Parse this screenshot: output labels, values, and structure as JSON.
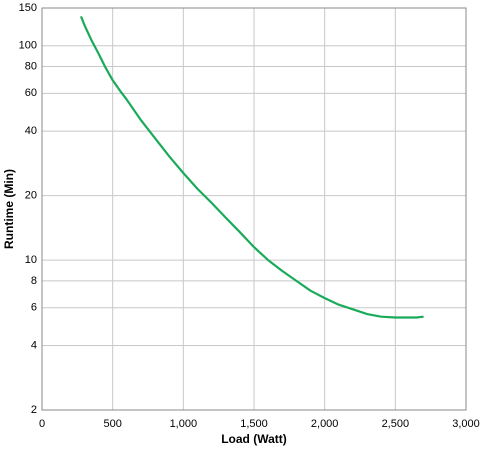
{
  "chart_data": {
    "type": "line",
    "xlabel": "Load (Watt)",
    "ylabel": "Runtime (Min)",
    "x": [
      276,
      300,
      350,
      400,
      450,
      500,
      550,
      600,
      700,
      800,
      900,
      1000,
      1100,
      1200,
      1300,
      1400,
      1500,
      1600,
      1700,
      1800,
      1900,
      2000,
      2100,
      2200,
      2300,
      2400,
      2500,
      2600,
      2650,
      2700
    ],
    "values": [
      137,
      125,
      106,
      92,
      79,
      69,
      62,
      56,
      45,
      37,
      30.5,
      25.5,
      21.5,
      18.5,
      15.8,
      13.5,
      11.5,
      10,
      8.9,
      8,
      7.2,
      6.65,
      6.2,
      5.9,
      5.6,
      5.45,
      5.4,
      5.4,
      5.4,
      5.45
    ],
    "color": "#1aab5a",
    "xlim": [
      0,
      3000
    ],
    "xticks": [
      0,
      500,
      {
        "value": 1000,
        "label": "1,000"
      },
      {
        "value": 1500,
        "label": "1,500"
      },
      {
        "value": 2000,
        "label": "2,000"
      },
      {
        "value": 2500,
        "label": "2,500"
      },
      {
        "value": 3000,
        "label": "3,000"
      }
    ],
    "ylim": [
      2,
      150
    ],
    "yticks": [
      2,
      4,
      6,
      8,
      10,
      20,
      40,
      60,
      80,
      100,
      150
    ],
    "ylog": true,
    "grid": true
  }
}
